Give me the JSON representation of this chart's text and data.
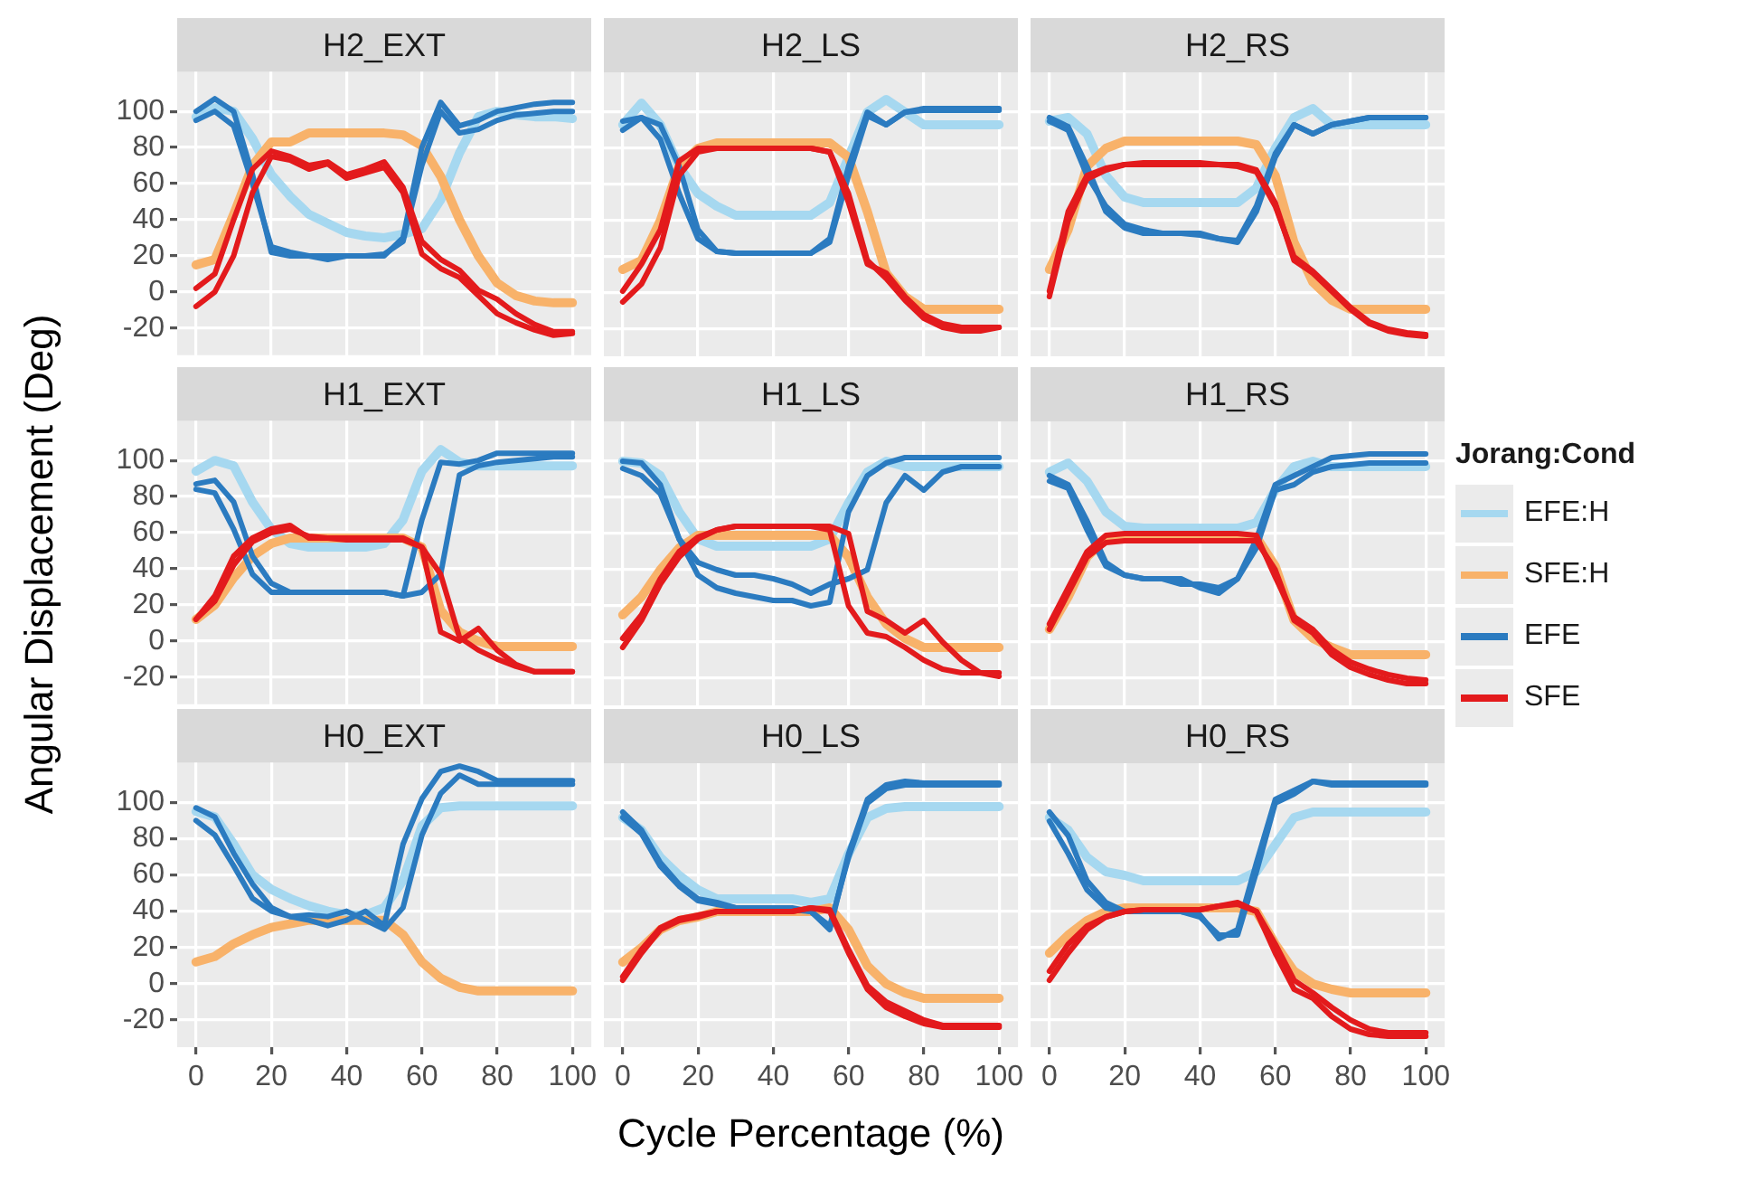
{
  "chart_data": [
    {
      "type": "line",
      "title": "H2_EXT",
      "legend": "right",
      "legend_title": "Jorang:Cond",
      "x": [
        0,
        5,
        10,
        15,
        20,
        25,
        30,
        35,
        40,
        45,
        50,
        55,
        60,
        65,
        70,
        75,
        80,
        85,
        90,
        95,
        100
      ],
      "xlim": [
        -5,
        105
      ],
      "xticks": [
        0,
        20,
        40,
        60,
        80,
        100
      ],
      "ylim": [
        -35,
        122
      ],
      "yticks": [
        -20,
        0,
        20,
        40,
        60,
        80,
        100
      ],
      "grid": true,
      "tick_labels": "y",
      "marker": "none",
      "series": [
        {
          "name": "EFE:H",
          "color": "#a6d8f0",
          "values": [
            97,
            102,
            100,
            85,
            65,
            53,
            43,
            38,
            33,
            31,
            30,
            32,
            35,
            51,
            77,
            97,
            100,
            98,
            97,
            97,
            96
          ]
        },
        {
          "name": "SFE:H",
          "color": "#f8b26a",
          "values": [
            15,
            18,
            43,
            70,
            83,
            83,
            88,
            88,
            88,
            88,
            88,
            87,
            81,
            64,
            40,
            20,
            5,
            -2,
            -5,
            -6,
            -6
          ]
        },
        {
          "name": "EFE",
          "color": "#2b7bc0",
          "values": [
            100,
            107,
            100,
            65,
            22,
            20,
            20,
            18,
            20,
            20,
            20,
            30,
            80,
            105,
            92,
            95,
            100,
            102,
            104,
            105,
            105
          ]
        },
        {
          "color": "#2b7bc0",
          "values": [
            95,
            100,
            92,
            60,
            25,
            22,
            20,
            20,
            20,
            20,
            21,
            28,
            70,
            100,
            88,
            90,
            95,
            98,
            99,
            100,
            100
          ]
        },
        {
          "name": "SFE",
          "color": "#e31a1c",
          "values": [
            -8,
            0,
            20,
            55,
            75,
            73,
            68,
            71,
            63,
            66,
            69,
            55,
            21,
            13,
            8,
            -2,
            -12,
            -17,
            -21,
            -24,
            -23
          ]
        },
        {
          "color": "#e31a1c",
          "values": [
            2,
            10,
            40,
            68,
            78,
            75,
            70,
            72,
            65,
            68,
            72,
            58,
            28,
            18,
            12,
            1,
            -4,
            -12,
            -18,
            -22,
            -22
          ]
        }
      ]
    },
    {
      "type": "line",
      "title": "H2_LS",
      "x": [
        0,
        5,
        10,
        15,
        20,
        25,
        30,
        35,
        40,
        45,
        50,
        55,
        60,
        65,
        70,
        75,
        80,
        85,
        90,
        95,
        100
      ],
      "xlim": [
        -5,
        105
      ],
      "xticks": [
        0,
        20,
        40,
        60,
        80,
        100
      ],
      "ylim": [
        -35,
        122
      ],
      "yticks": [
        -20,
        0,
        20,
        40,
        60,
        80,
        100
      ],
      "grid": true,
      "tick_labels": false,
      "marker": "none",
      "series": [
        {
          "color": "#a6d8f0",
          "values": [
            93,
            105,
            93,
            70,
            55,
            48,
            43,
            43,
            43,
            43,
            43,
            50,
            75,
            100,
            107,
            100,
            93,
            93,
            93,
            93,
            93
          ]
        },
        {
          "color": "#f8b26a",
          "values": [
            13,
            18,
            40,
            70,
            80,
            83,
            83,
            83,
            83,
            83,
            83,
            83,
            75,
            45,
            11,
            -2,
            -9,
            -9,
            -9,
            -9,
            -9
          ]
        },
        {
          "color": "#2b7bc0",
          "values": [
            95,
            97,
            85,
            55,
            30,
            23,
            22,
            22,
            22,
            22,
            22,
            30,
            70,
            100,
            93,
            100,
            102,
            102,
            102,
            102,
            102
          ]
        },
        {
          "color": "#2b7bc0",
          "values": [
            90,
            97,
            93,
            70,
            35,
            23,
            22,
            22,
            22,
            22,
            22,
            28,
            65,
            98,
            93,
            100,
            101,
            101,
            101,
            101,
            101
          ]
        },
        {
          "color": "#e31a1c",
          "values": [
            -5,
            5,
            25,
            65,
            78,
            80,
            80,
            80,
            80,
            80,
            80,
            78,
            50,
            16,
            11,
            -2,
            -12,
            -17,
            -19,
            -19,
            -19
          ]
        },
        {
          "color": "#e31a1c",
          "values": [
            1,
            16,
            35,
            73,
            80,
            80,
            80,
            80,
            80,
            80,
            80,
            78,
            55,
            18,
            8,
            -4,
            -14,
            -19,
            -21,
            -21,
            -19
          ]
        }
      ]
    },
    {
      "type": "line",
      "title": "H2_RS",
      "x": [
        0,
        5,
        10,
        15,
        20,
        25,
        30,
        35,
        40,
        45,
        50,
        55,
        60,
        65,
        70,
        75,
        80,
        85,
        90,
        95,
        100
      ],
      "xlim": [
        -5,
        105
      ],
      "xticks": [
        0,
        20,
        40,
        60,
        80,
        100
      ],
      "ylim": [
        -35,
        122
      ],
      "yticks": [
        -20,
        0,
        20,
        40,
        60,
        80,
        100
      ],
      "grid": true,
      "tick_labels": false,
      "marker": "none",
      "series": [
        {
          "color": "#a6d8f0",
          "values": [
            95,
            97,
            88,
            65,
            53,
            50,
            50,
            50,
            50,
            50,
            50,
            58,
            80,
            97,
            102,
            93,
            93,
            93,
            93,
            93,
            93
          ]
        },
        {
          "color": "#f8b26a",
          "values": [
            13,
            35,
            70,
            80,
            84,
            84,
            84,
            84,
            84,
            84,
            84,
            82,
            65,
            28,
            6,
            -4,
            -9,
            -9,
            -9,
            -9,
            -9
          ]
        },
        {
          "color": "#2b7bc0",
          "values": [
            95,
            90,
            65,
            48,
            38,
            35,
            33,
            33,
            33,
            30,
            28,
            45,
            75,
            93,
            88,
            93,
            95,
            97,
            97,
            97,
            97
          ]
        },
        {
          "color": "#2b7bc0",
          "values": [
            97,
            92,
            70,
            45,
            36,
            33,
            33,
            33,
            32,
            30,
            29,
            48,
            77,
            93,
            88,
            93,
            95,
            97,
            97,
            97,
            97
          ]
        },
        {
          "color": "#e31a1c",
          "values": [
            -2,
            40,
            63,
            68,
            71,
            71,
            71,
            71,
            71,
            71,
            71,
            68,
            50,
            18,
            11,
            1,
            -9,
            -17,
            -21,
            -23,
            -24
          ]
        },
        {
          "color": "#e31a1c",
          "values": [
            1,
            45,
            65,
            69,
            71,
            72,
            72,
            72,
            72,
            71,
            70,
            67,
            48,
            20,
            12,
            2,
            -8,
            -16,
            -20,
            -22,
            -23
          ]
        }
      ]
    },
    {
      "type": "line",
      "title": "H1_EXT",
      "ylabel": "Angular Displacement (Deg)",
      "x": [
        0,
        5,
        10,
        15,
        20,
        25,
        30,
        35,
        40,
        45,
        50,
        55,
        60,
        65,
        70,
        75,
        80,
        85,
        90,
        95,
        100
      ],
      "xlim": [
        -5,
        105
      ],
      "xticks": [
        0,
        20,
        40,
        60,
        80,
        100
      ],
      "ylim": [
        -35,
        122
      ],
      "yticks": [
        -20,
        0,
        20,
        40,
        60,
        80,
        100
      ],
      "grid": true,
      "tick_labels": "y",
      "marker": "none",
      "series": [
        {
          "color": "#a6d8f0",
          "values": [
            94,
            100,
            97,
            77,
            62,
            54,
            52,
            52,
            52,
            52,
            54,
            67,
            94,
            106,
            99,
            97,
            97,
            97,
            97,
            97,
            97
          ]
        },
        {
          "color": "#f8b26a",
          "values": [
            12,
            20,
            35,
            47,
            54,
            57,
            57,
            57,
            57,
            57,
            57,
            57,
            52,
            17,
            5,
            0,
            -3,
            -3,
            -3,
            -3,
            -3
          ]
        },
        {
          "color": "#2b7bc0",
          "values": [
            87,
            89,
            77,
            47,
            32,
            27,
            27,
            27,
            27,
            27,
            27,
            25,
            67,
            99,
            98,
            100,
            104,
            104,
            104,
            104,
            104
          ]
        },
        {
          "color": "#2b7bc0",
          "values": [
            84,
            82,
            62,
            37,
            27,
            27,
            27,
            27,
            27,
            27,
            27,
            25,
            27,
            37,
            92,
            97,
            99,
            100,
            101,
            102,
            102
          ]
        },
        {
          "color": "#e31a1c",
          "values": [
            12,
            25,
            47,
            57,
            62,
            64,
            57,
            57,
            57,
            57,
            57,
            57,
            52,
            5,
            0,
            7,
            -5,
            -13,
            -17,
            -17,
            -17
          ]
        },
        {
          "color": "#e31a1c",
          "values": [
            12,
            22,
            42,
            55,
            60,
            62,
            58,
            57,
            56,
            56,
            56,
            56,
            52,
            37,
            2,
            -5,
            -10,
            -14,
            -17,
            -17,
            -17
          ]
        }
      ]
    },
    {
      "type": "line",
      "title": "H1_LS",
      "x": [
        0,
        5,
        10,
        15,
        20,
        25,
        30,
        35,
        40,
        45,
        50,
        55,
        60,
        65,
        70,
        75,
        80,
        85,
        90,
        95,
        100
      ],
      "xlim": [
        -5,
        105
      ],
      "xticks": [
        0,
        20,
        40,
        60,
        80,
        100
      ],
      "ylim": [
        -35,
        122
      ],
      "yticks": [
        -20,
        0,
        20,
        40,
        60,
        80,
        100
      ],
      "grid": true,
      "tick_labels": false,
      "marker": "none",
      "series": [
        {
          "color": "#a6d8f0",
          "values": [
            100,
            99,
            92,
            72,
            57,
            53,
            53,
            53,
            53,
            53,
            53,
            57,
            77,
            94,
            100,
            97,
            97,
            97,
            97,
            97,
            97
          ]
        },
        {
          "color": "#f8b26a",
          "values": [
            15,
            25,
            40,
            52,
            59,
            59,
            59,
            59,
            59,
            59,
            59,
            59,
            47,
            25,
            10,
            2,
            -3,
            -3,
            -3,
            -3,
            -3
          ]
        },
        {
          "color": "#2b7bc0",
          "values": [
            100,
            99,
            87,
            57,
            37,
            30,
            27,
            25,
            23,
            23,
            20,
            22,
            72,
            92,
            99,
            102,
            102,
            102,
            102,
            102,
            102
          ]
        },
        {
          "color": "#2b7bc0",
          "values": [
            96,
            92,
            82,
            57,
            44,
            40,
            37,
            37,
            35,
            32,
            27,
            32,
            35,
            40,
            77,
            92,
            84,
            94,
            97,
            97,
            97
          ]
        },
        {
          "color": "#e31a1c",
          "values": [
            -3,
            12,
            32,
            47,
            57,
            62,
            64,
            64,
            64,
            64,
            64,
            62,
            20,
            5,
            3,
            -3,
            -10,
            -15,
            -17,
            -17,
            -17
          ]
        },
        {
          "color": "#e31a1c",
          "values": [
            2,
            15,
            35,
            50,
            58,
            62,
            64,
            64,
            64,
            64,
            64,
            64,
            60,
            17,
            12,
            5,
            12,
            0,
            -10,
            -17,
            -19
          ]
        }
      ]
    },
    {
      "type": "line",
      "title": "H1_RS",
      "x": [
        0,
        5,
        10,
        15,
        20,
        25,
        30,
        35,
        40,
        45,
        50,
        55,
        60,
        65,
        70,
        75,
        80,
        85,
        90,
        95,
        100
      ],
      "xlim": [
        -5,
        105
      ],
      "xticks": [
        0,
        20,
        40,
        60,
        80,
        100
      ],
      "ylim": [
        -35,
        122
      ],
      "yticks": [
        -20,
        0,
        20,
        40,
        60,
        80,
        100
      ],
      "grid": true,
      "tick_labels": false,
      "marker": "none",
      "series": [
        {
          "color": "#a6d8f0",
          "values": [
            94,
            99,
            89,
            72,
            64,
            63,
            63,
            63,
            63,
            63,
            63,
            66,
            84,
            97,
            100,
            97,
            97,
            97,
            97,
            97,
            97
          ]
        },
        {
          "color": "#f8b26a",
          "values": [
            7,
            25,
            47,
            57,
            58,
            58,
            58,
            58,
            58,
            58,
            58,
            58,
            42,
            12,
            2,
            -3,
            -7,
            -7,
            -7,
            -7,
            -7
          ]
        },
        {
          "color": "#2b7bc0",
          "values": [
            92,
            87,
            67,
            44,
            37,
            35,
            35,
            32,
            32,
            30,
            35,
            57,
            87,
            92,
            97,
            102,
            103,
            104,
            104,
            104,
            104
          ]
        },
        {
          "color": "#2b7bc0",
          "values": [
            89,
            85,
            62,
            42,
            37,
            35,
            35,
            35,
            30,
            27,
            35,
            52,
            84,
            87,
            94,
            97,
            98,
            99,
            99,
            99,
            99
          ]
        },
        {
          "color": "#e31a1c",
          "values": [
            7,
            27,
            47,
            55,
            56,
            56,
            56,
            56,
            56,
            56,
            56,
            56,
            40,
            12,
            5,
            -7,
            -14,
            -18,
            -21,
            -23,
            -23
          ]
        },
        {
          "color": "#e31a1c",
          "values": [
            10,
            30,
            50,
            59,
            60,
            60,
            60,
            60,
            60,
            60,
            60,
            59,
            36,
            14,
            7,
            -4,
            -11,
            -15,
            -18,
            -20,
            -21
          ]
        }
      ]
    },
    {
      "type": "line",
      "title": "H0_EXT",
      "x": [
        0,
        5,
        10,
        15,
        20,
        25,
        30,
        35,
        40,
        45,
        50,
        55,
        60,
        65,
        70,
        75,
        80,
        85,
        90,
        95,
        100
      ],
      "xlim": [
        -5,
        105
      ],
      "xticks": [
        0,
        20,
        40,
        60,
        80,
        100
      ],
      "ylim": [
        -35,
        122
      ],
      "yticks": [
        -20,
        0,
        20,
        40,
        60,
        80,
        100
      ],
      "grid": true,
      "marker": "none",
      "series": [
        {
          "color": "#a6d8f0",
          "values": [
            95,
            92,
            77,
            60,
            52,
            47,
            43,
            40,
            38,
            38,
            42,
            57,
            87,
            97,
            98,
            98,
            98,
            98,
            98,
            98,
            98
          ]
        },
        {
          "color": "#f8b26a",
          "values": [
            12,
            15,
            22,
            27,
            31,
            33,
            35,
            35,
            35,
            35,
            35,
            27,
            12,
            3,
            -2,
            -4,
            -4,
            -4,
            -4,
            -4,
            -4
          ]
        },
        {
          "color": "#2b7bc0",
          "values": [
            97,
            92,
            72,
            55,
            42,
            37,
            35,
            32,
            35,
            40,
            32,
            77,
            102,
            117,
            120,
            117,
            112,
            112,
            112,
            112,
            112
          ]
        },
        {
          "color": "#2b7bc0",
          "values": [
            90,
            82,
            65,
            47,
            40,
            37,
            38,
            37,
            40,
            35,
            30,
            42,
            82,
            105,
            115,
            110,
            110,
            110,
            110,
            110,
            110
          ]
        }
      ]
    },
    {
      "type": "line",
      "title": "H0_LS",
      "xlabel": "Cycle Percentage (%)",
      "x": [
        0,
        5,
        10,
        15,
        20,
        25,
        30,
        35,
        40,
        45,
        50,
        55,
        60,
        65,
        70,
        75,
        80,
        85,
        90,
        95,
        100
      ],
      "xlim": [
        -5,
        105
      ],
      "xticks": [
        0,
        20,
        40,
        60,
        80,
        100
      ],
      "ylim": [
        -35,
        122
      ],
      "yticks": [
        -20,
        0,
        20,
        40,
        60,
        80,
        100
      ],
      "grid": true,
      "tick_labels": "x",
      "marker": "none",
      "series": [
        {
          "color": "#a6d8f0",
          "values": [
            92,
            85,
            70,
            60,
            52,
            47,
            47,
            47,
            47,
            47,
            45,
            47,
            72,
            92,
            97,
            98,
            98,
            98,
            98,
            98,
            98
          ]
        },
        {
          "color": "#f8b26a",
          "values": [
            12,
            20,
            30,
            35,
            37,
            40,
            40,
            40,
            40,
            40,
            40,
            42,
            30,
            10,
            0,
            -5,
            -8,
            -8,
            -8,
            -8,
            -8
          ]
        },
        {
          "color": "#2b7bc0",
          "values": [
            95,
            85,
            67,
            55,
            47,
            45,
            42,
            42,
            42,
            42,
            40,
            30,
            72,
            102,
            110,
            112,
            111,
            111,
            111,
            111,
            111
          ]
        },
        {
          "color": "#2b7bc0",
          "values": [
            92,
            83,
            65,
            54,
            46,
            44,
            42,
            42,
            42,
            41,
            40,
            32,
            70,
            100,
            108,
            110,
            110,
            110,
            110,
            110,
            110
          ]
        },
        {
          "color": "#e31a1c",
          "values": [
            2,
            17,
            30,
            35,
            37,
            40,
            40,
            40,
            40,
            40,
            42,
            40,
            17,
            -3,
            -13,
            -18,
            -22,
            -24,
            -24,
            -24,
            -24
          ]
        },
        {
          "color": "#e31a1c",
          "values": [
            4,
            19,
            31,
            36,
            38,
            40,
            40,
            40,
            40,
            40,
            42,
            41,
            19,
            -1,
            -10,
            -15,
            -20,
            -23,
            -23,
            -23,
            -23
          ]
        }
      ]
    },
    {
      "type": "line",
      "title": "H0_RS",
      "x": [
        0,
        5,
        10,
        15,
        20,
        25,
        30,
        35,
        40,
        45,
        50,
        55,
        60,
        65,
        70,
        75,
        80,
        85,
        90,
        95,
        100
      ],
      "xlim": [
        -5,
        105
      ],
      "xticks": [
        0,
        20,
        40,
        60,
        80,
        100
      ],
      "ylim": [
        -35,
        122
      ],
      "yticks": [
        -20,
        0,
        20,
        40,
        60,
        80,
        100
      ],
      "grid": true,
      "tick_labels": "x",
      "marker": "none",
      "series": [
        {
          "color": "#a6d8f0",
          "values": [
            92,
            85,
            70,
            62,
            60,
            57,
            57,
            57,
            57,
            57,
            57,
            62,
            77,
            92,
            95,
            95,
            95,
            95,
            95,
            95,
            95
          ]
        },
        {
          "color": "#f8b26a",
          "values": [
            17,
            27,
            35,
            40,
            42,
            42,
            42,
            42,
            42,
            42,
            42,
            40,
            22,
            7,
            0,
            -3,
            -5,
            -5,
            -5,
            -5,
            -5
          ]
        },
        {
          "color": "#2b7bc0",
          "values": [
            95,
            82,
            57,
            45,
            40,
            40,
            40,
            40,
            37,
            27,
            27,
            62,
            100,
            105,
            112,
            110,
            110,
            110,
            110,
            110,
            110
          ]
        },
        {
          "color": "#2b7bc0",
          "values": [
            90,
            72,
            52,
            42,
            40,
            40,
            40,
            40,
            38,
            25,
            30,
            67,
            102,
            107,
            112,
            111,
            111,
            111,
            111,
            111,
            111
          ]
        },
        {
          "color": "#e31a1c",
          "values": [
            2,
            17,
            30,
            37,
            40,
            41,
            41,
            41,
            41,
            43,
            45,
            40,
            17,
            -3,
            -8,
            -18,
            -25,
            -28,
            -29,
            -29,
            -29
          ]
        },
        {
          "color": "#e31a1c",
          "values": [
            7,
            22,
            32,
            37,
            40,
            41,
            41,
            41,
            41,
            43,
            44,
            40,
            22,
            2,
            -5,
            -13,
            -20,
            -25,
            -27,
            -27,
            -27
          ]
        }
      ]
    }
  ]
}
